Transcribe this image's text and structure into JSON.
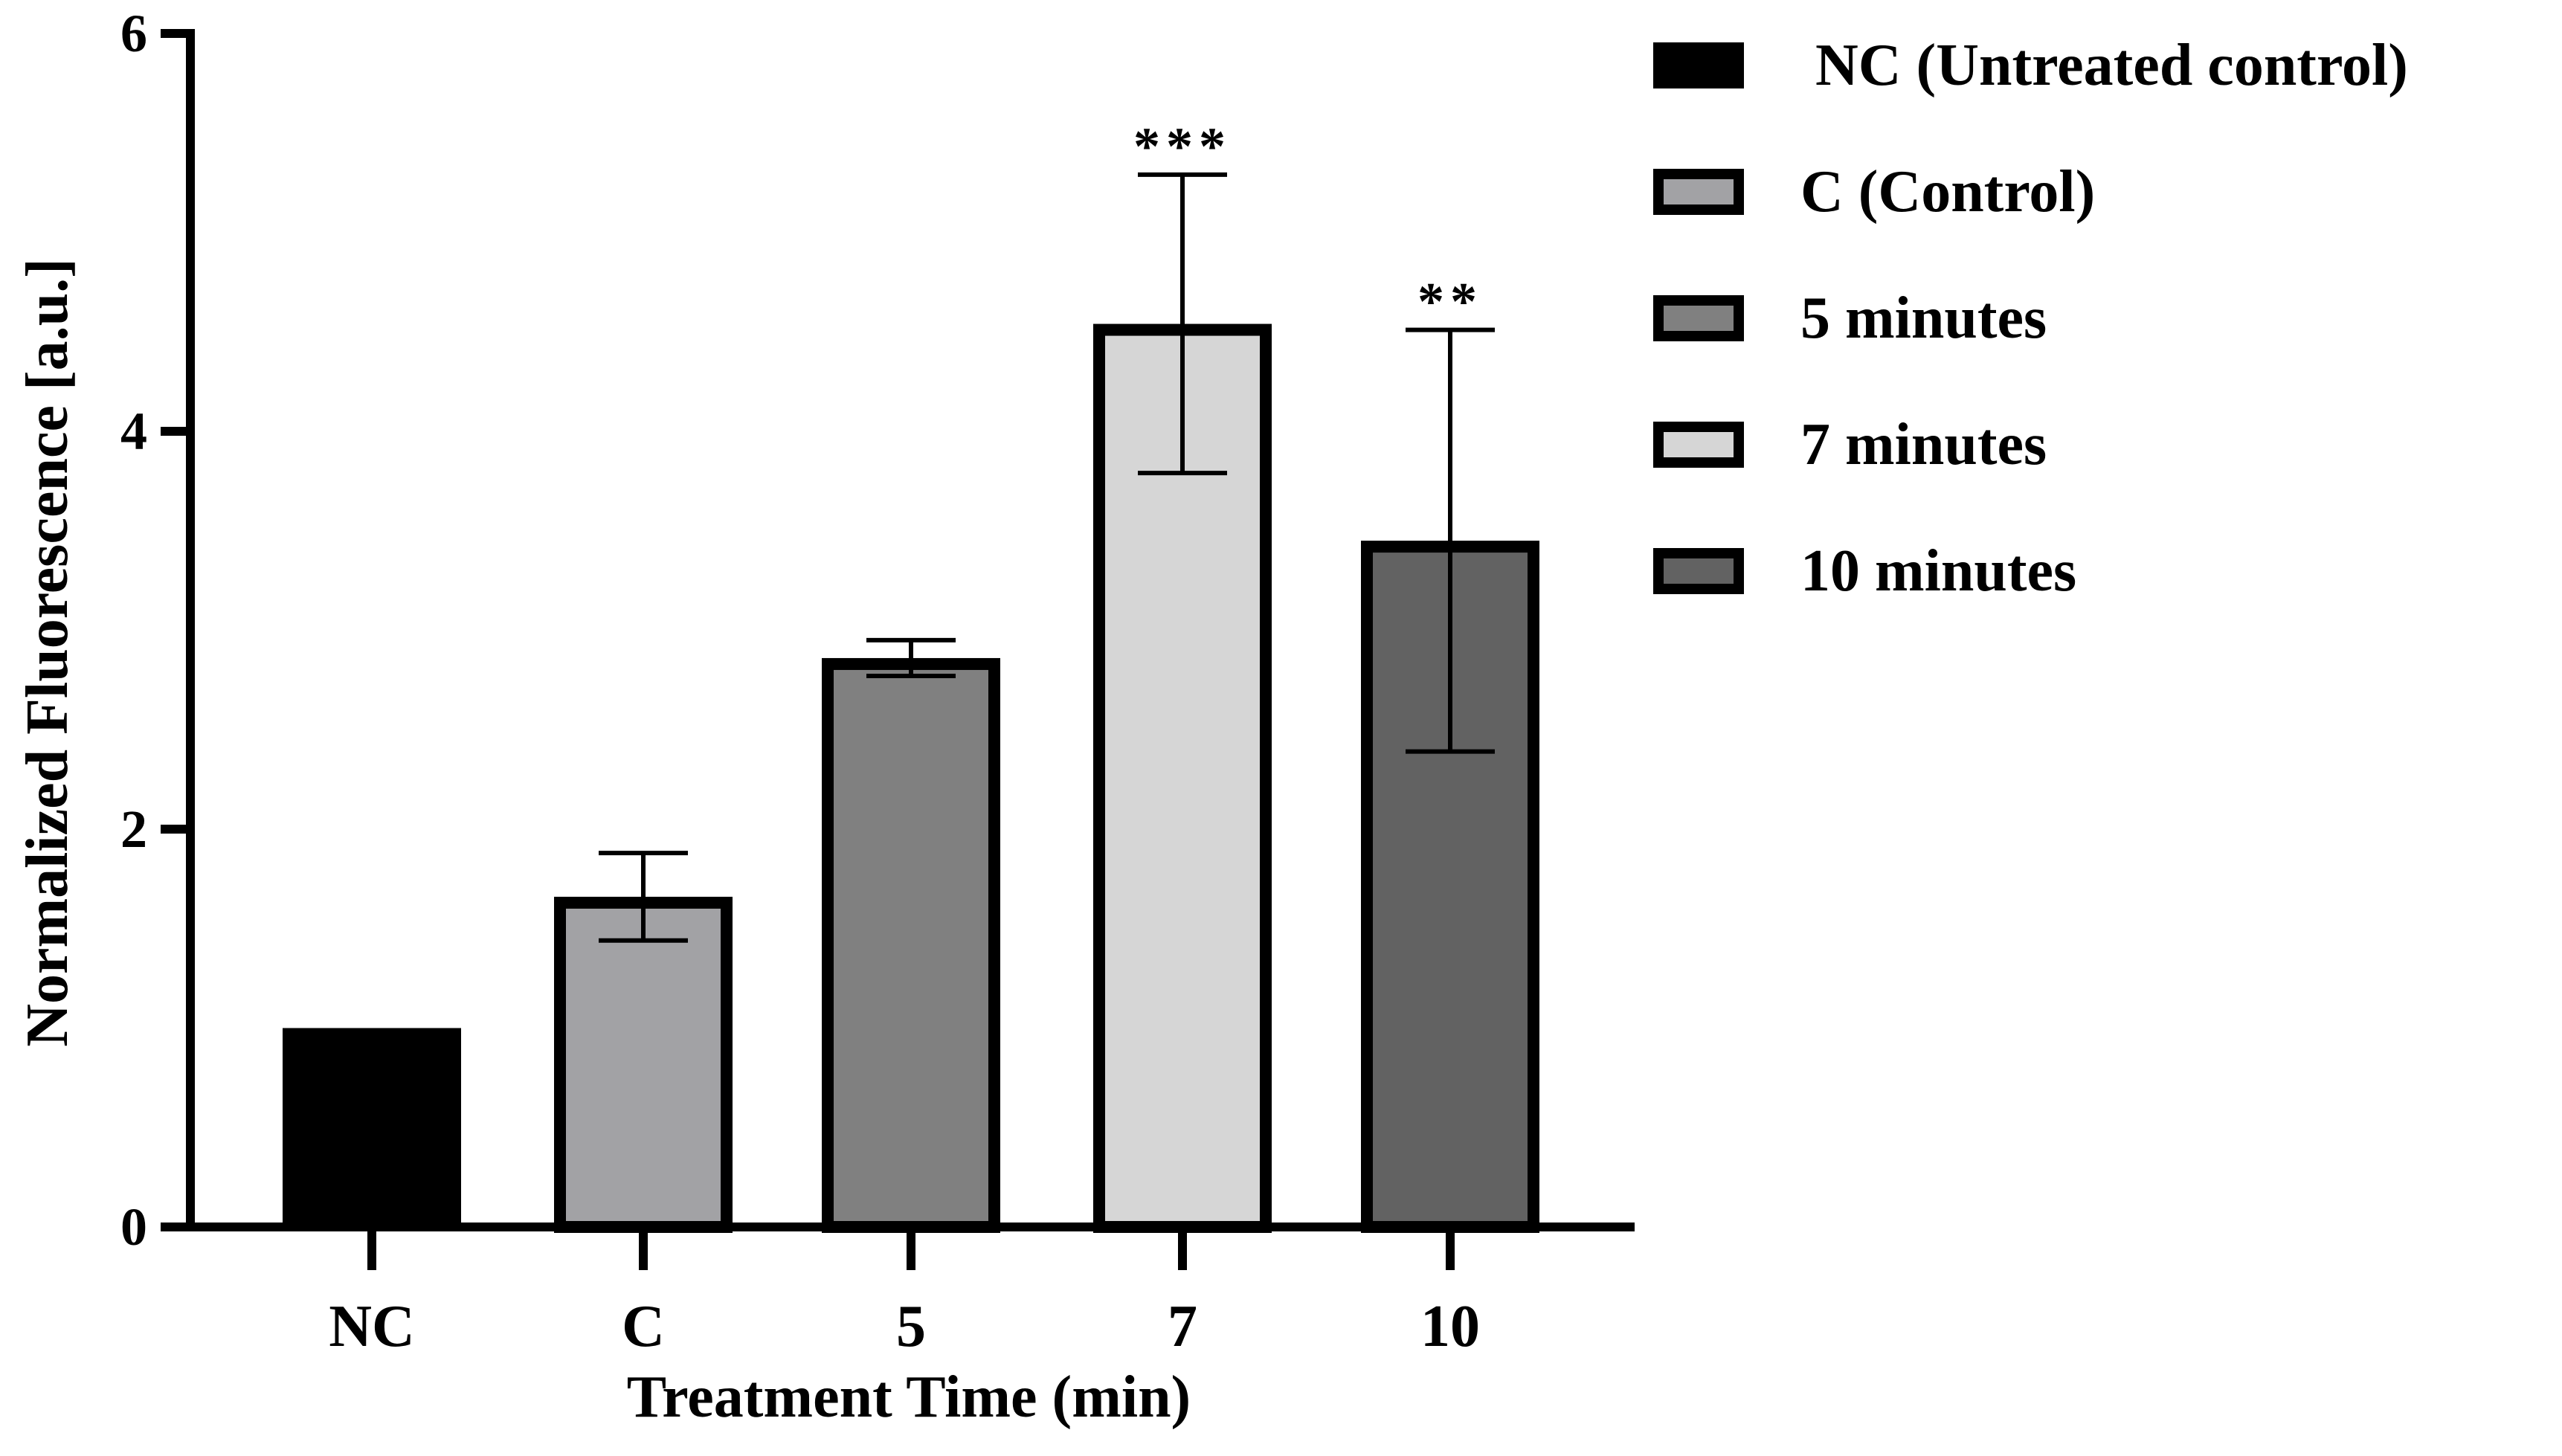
{
  "chart_data": {
    "type": "bar",
    "title": "",
    "xlabel": "Treatment Time (min)",
    "ylabel": "Normalized Fluorescence [a.u.]",
    "ylim": [
      0,
      6
    ],
    "yticks": [
      "0",
      "2",
      "4",
      "6"
    ],
    "grid": false,
    "categories": [
      "NC",
      "C",
      "5",
      "7",
      "10"
    ],
    "values": [
      1.0,
      1.66,
      2.86,
      4.54,
      3.45
    ],
    "errors": [
      0,
      0.22,
      0.09,
      0.75,
      1.06
    ],
    "significance": [
      "",
      "",
      "",
      "***",
      "**"
    ],
    "colors": [
      "#000000",
      "#a2a2a5",
      "#808080",
      "#d6d6d6",
      "#626262"
    ],
    "legend_position": "top-right",
    "legend": [
      {
        "label": " NC (Untreated control)",
        "color": "#000000"
      },
      {
        "label": "C (Control)",
        "color": "#a2a2a5"
      },
      {
        "label": "5 minutes",
        "color": "#808080"
      },
      {
        "label": "7 minutes",
        "color": "#d6d6d6"
      },
      {
        "label": "10 minutes",
        "color": "#626262"
      }
    ]
  }
}
